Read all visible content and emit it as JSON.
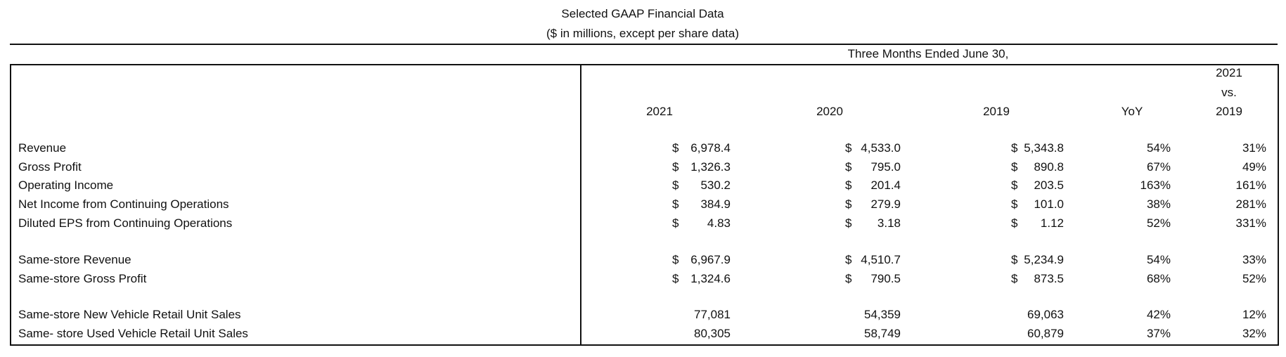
{
  "header": {
    "title": "Selected GAAP Financial Data",
    "subtitle": "($ in millions, except per share data)"
  },
  "table": {
    "period": "Three Months Ended June 30,",
    "columns": [
      [
        "2021"
      ],
      [
        "2020"
      ],
      [
        "2019"
      ],
      [
        "YoY"
      ],
      [
        "2021",
        "vs.",
        "2019"
      ]
    ],
    "groups": [
      [
        {
          "label": "Revenue",
          "cells": [
            [
              "$",
              "6,978.4"
            ],
            [
              "$",
              "4,533.0"
            ],
            [
              "$",
              "5,343.8"
            ],
            [
              "54%"
            ],
            [
              "31%"
            ]
          ]
        },
        {
          "label": "Gross Profit",
          "cells": [
            [
              "$",
              "1,326.3"
            ],
            [
              "$",
              "795.0"
            ],
            [
              "$",
              "890.8"
            ],
            [
              "67%"
            ],
            [
              "49%"
            ]
          ]
        },
        {
          "label": "Operating Income",
          "cells": [
            [
              "$",
              "530.2"
            ],
            [
              "$",
              "201.4"
            ],
            [
              "$",
              "203.5"
            ],
            [
              "163%"
            ],
            [
              "161%"
            ]
          ]
        },
        {
          "label": "Net Income  from Continuing Operations",
          "cells": [
            [
              "$",
              "384.9"
            ],
            [
              "$",
              "279.9"
            ],
            [
              "$",
              "101.0"
            ],
            [
              "38%"
            ],
            [
              "281%"
            ]
          ]
        },
        {
          "label": "Diluted EPS from Continuing Operations",
          "cells": [
            [
              "$",
              "4.83"
            ],
            [
              "$",
              "3.18"
            ],
            [
              "$",
              "1.12"
            ],
            [
              "52%"
            ],
            [
              "331%"
            ]
          ]
        }
      ],
      [
        {
          "label": "Same-store Revenue",
          "cells": [
            [
              "$",
              "6,967.9"
            ],
            [
              "$",
              "4,510.7"
            ],
            [
              "$",
              "5,234.9"
            ],
            [
              "54%"
            ],
            [
              "33%"
            ]
          ]
        },
        {
          "label": "Same-store Gross Profit",
          "cells": [
            [
              "$",
              "1,324.6"
            ],
            [
              "$",
              "790.5"
            ],
            [
              "$",
              "873.5"
            ],
            [
              "68%"
            ],
            [
              "52%"
            ]
          ]
        }
      ],
      [
        {
          "label": "Same-store New Vehicle Retail Unit Sales",
          "cells": [
            [
              "77,081"
            ],
            [
              "54,359"
            ],
            [
              "69,063"
            ],
            [
              "42%"
            ],
            [
              "12%"
            ]
          ]
        },
        {
          "label": "Same- store Used Vehicle Retail Unit Sales",
          "cells": [
            [
              "80,305"
            ],
            [
              "58,749"
            ],
            [
              "60,879"
            ],
            [
              "37%"
            ],
            [
              "32%"
            ]
          ]
        }
      ]
    ]
  }
}
